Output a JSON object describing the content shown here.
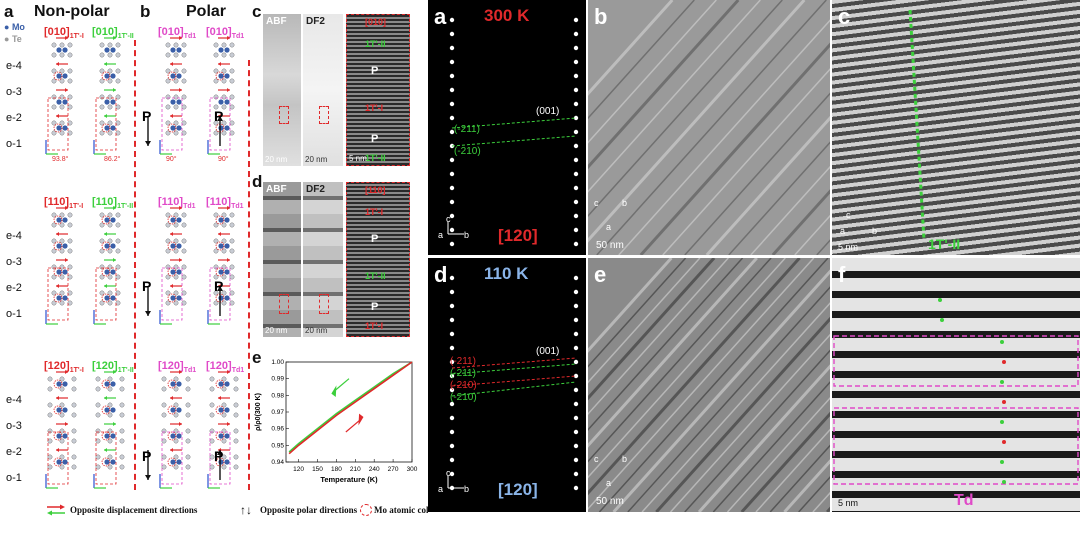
{
  "left": {
    "labels": {
      "a": "a",
      "b": "b",
      "c": "c",
      "d": "d",
      "e": "e"
    },
    "legend_mo": "Mo",
    "legend_te": "Te",
    "header_nonpolar": "Non-polar",
    "header_polar": "Polar",
    "rows": [
      {
        "name": "010",
        "nonpolar": [
          "[010]1T'-I",
          "[010]1T'-II"
        ],
        "polar": [
          "[010]Td1",
          "[010]Td1"
        ]
      },
      {
        "name": "110",
        "nonpolar": [
          "[110]1T'-I",
          "[110]1T'-II"
        ],
        "polar": [
          "[110]Td1",
          "[110]Td1"
        ]
      },
      {
        "name": "120",
        "nonpolar": [
          "[120]1T'-I",
          "[120]1T'-II"
        ],
        "polar": [
          "[120]Td1",
          "[120]Td1"
        ]
      }
    ],
    "layer_labels": [
      "e-4",
      "o-3",
      "e-2",
      "o-1"
    ],
    "angles": [
      "93.8°",
      "86.2°",
      "90°",
      "90°"
    ],
    "p_label": "P",
    "panel_c_tags": [
      "ABF",
      "DF2"
    ],
    "panel_c_scales": [
      "20 nm",
      "20 nm",
      "5 nm"
    ],
    "panel_c_overlay": [
      "[010]",
      "1T'-II",
      "P",
      "1T'-I",
      "P",
      "1T'-II"
    ],
    "panel_d_tags": [
      "ABF",
      "DF2"
    ],
    "panel_d_scales": [
      "20 nm",
      "20 nm"
    ],
    "panel_d_overlay": [
      "[110]",
      "1T'-I",
      "P",
      "1T'-II",
      "P",
      "1T'-I"
    ],
    "legend_items": [
      "Opposite displacement directions",
      "Opposite polar directions",
      "Mo atomic columns"
    ]
  },
  "chart_data": {
    "type": "line",
    "xlabel": "Temperature (K)",
    "ylabel": "ρ/ρ0(300 K)",
    "xlim": [
      100,
      300
    ],
    "ylim": [
      0.94,
      1.0
    ],
    "xticks": [
      120,
      150,
      180,
      210,
      240,
      270,
      300
    ],
    "yticks": [
      0.94,
      0.95,
      0.96,
      0.97,
      0.98,
      0.99,
      1.0
    ],
    "series": [
      {
        "color": "#3ccf3c",
        "x": [
          105,
          120,
          150,
          180,
          210,
          240,
          270,
          300
        ],
        "y": [
          0.946,
          0.951,
          0.96,
          0.969,
          0.977,
          0.985,
          0.993,
          1.0
        ]
      },
      {
        "color": "#e0292b",
        "x": [
          105,
          120,
          150,
          180,
          210,
          240,
          270,
          300
        ],
        "y": [
          0.945,
          0.95,
          0.959,
          0.968,
          0.976,
          0.984,
          0.992,
          1.0
        ]
      }
    ],
    "arrows": [
      "cooling",
      "warming"
    ]
  },
  "right": {
    "a": {
      "label": "a",
      "temp": "300 K",
      "zone": "[120]",
      "spots": [
        "(001)",
        "(-211)",
        "(-210)"
      ],
      "axes": [
        "c",
        "a",
        "b"
      ]
    },
    "b": {
      "label": "b",
      "scale": "50 nm",
      "axes": [
        "c",
        "b",
        "a"
      ]
    },
    "c": {
      "label": "c",
      "scale": "5 nm",
      "phase": "1T'-II",
      "axes": [
        "c",
        "a",
        "b"
      ]
    },
    "d": {
      "label": "d",
      "temp": "110 K",
      "zone": "[120]",
      "spots": [
        "(001)",
        "(-211)",
        "(-211)",
        "(-210)",
        "(-210)"
      ],
      "axes": [
        "c",
        "a",
        "b"
      ]
    },
    "e": {
      "label": "e",
      "scale": "50 nm",
      "axes": [
        "c",
        "b",
        "a"
      ]
    },
    "f": {
      "label": "f",
      "scale": "5 nm",
      "phase": "Td"
    }
  }
}
